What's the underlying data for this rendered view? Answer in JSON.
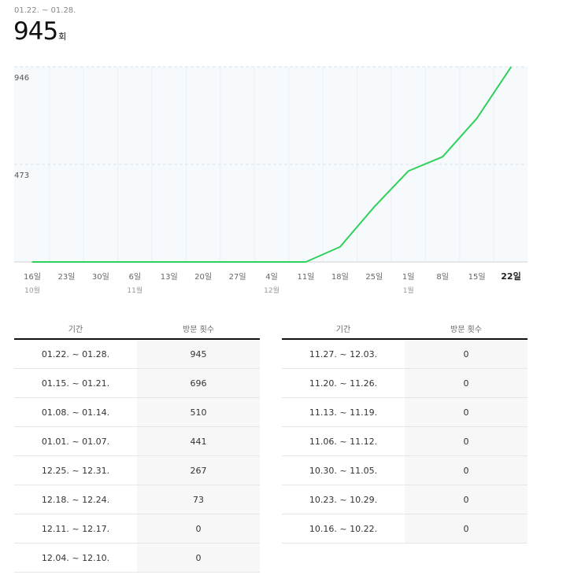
{
  "summary": {
    "range": "01.22. ~ 01.28.",
    "total": "945",
    "unit": "회"
  },
  "chart_data": {
    "type": "line",
    "x": [
      "16일",
      "23일",
      "30일",
      "6일",
      "13일",
      "20일",
      "27일",
      "4일",
      "11일",
      "18일",
      "25일",
      "1일",
      "8일",
      "15일",
      "22일"
    ],
    "month_labels": [
      "10월",
      "",
      "",
      "11월",
      "",
      "",
      "",
      "12월",
      "",
      "",
      "",
      "1월",
      "",
      "",
      ""
    ],
    "series": [
      {
        "values": [
          0,
          0,
          0,
          0,
          0,
          0,
          0,
          0,
          0,
          73,
          267,
          441,
          510,
          696,
          945
        ],
        "color": "#2ed15a"
      }
    ],
    "yticks": [
      473,
      946
    ],
    "ytick_labels": [
      "473",
      "946"
    ],
    "ylim": [
      0,
      946
    ],
    "highlight_last": true,
    "grid": true
  },
  "table": {
    "headers": [
      "기간",
      "방문 횟수"
    ],
    "left_rows": [
      [
        "01.22. ~ 01.28.",
        "945"
      ],
      [
        "01.15. ~ 01.21.",
        "696"
      ],
      [
        "01.08. ~ 01.14.",
        "510"
      ],
      [
        "01.01. ~ 01.07.",
        "441"
      ],
      [
        "12.25. ~ 12.31.",
        "267"
      ],
      [
        "12.18. ~ 12.24.",
        "73"
      ],
      [
        "12.11. ~ 12.17.",
        "0"
      ],
      [
        "12.04. ~ 12.10.",
        "0"
      ]
    ],
    "right_rows": [
      [
        "11.27. ~ 12.03.",
        "0"
      ],
      [
        "11.20. ~ 11.26.",
        "0"
      ],
      [
        "11.13. ~ 11.19.",
        "0"
      ],
      [
        "11.06. ~ 11.12.",
        "0"
      ],
      [
        "10.30. ~ 11.05.",
        "0"
      ],
      [
        "10.23. ~ 10.29.",
        "0"
      ],
      [
        "10.16. ~ 10.22.",
        "0"
      ]
    ]
  }
}
